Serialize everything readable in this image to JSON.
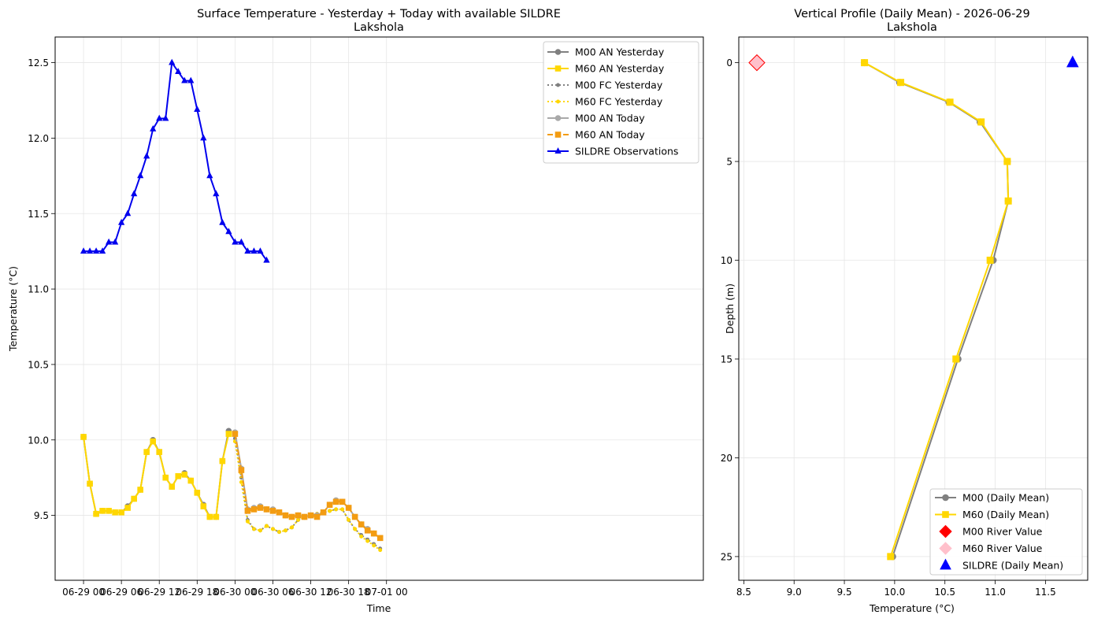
{
  "chart_data": [
    {
      "type": "line",
      "title": "Surface Temperature - Yesterday + Today with available SILDRE",
      "subtitle": "Lakshola",
      "xlabel": "Time",
      "ylabel": "Temperature (°C)",
      "x_unit": "hours since 06-29 00",
      "xlim": [
        -4.5,
        98.2
      ],
      "ylim": [
        9.07,
        12.67
      ],
      "xticks": [
        0,
        6,
        12,
        18,
        24,
        30,
        36,
        42,
        48
      ],
      "xtick_labels": [
        "06-29 00",
        "06-29 06",
        "06-29 12",
        "06-29 18",
        "06-30 00",
        "06-30 06",
        "06-30 12",
        "06-30 18",
        "07-01 00"
      ],
      "yticks": [
        9.5,
        10.0,
        10.5,
        11.0,
        11.5,
        12.0,
        12.5
      ],
      "ytick_labels": [
        "9.5",
        "10.0",
        "10.5",
        "11.0",
        "11.5",
        "12.0",
        "12.5"
      ],
      "grid": true,
      "legend_position": "top-right",
      "series": [
        {
          "name": "M00 AN Yesterday",
          "color": "#808080",
          "style": "solid",
          "marker": "circle",
          "x": [
            0,
            1,
            2,
            3,
            4,
            5,
            6,
            7,
            8,
            9,
            10,
            11,
            12,
            13,
            14,
            15,
            16,
            17,
            18,
            19,
            20,
            21,
            22,
            23
          ],
          "y": [
            10.02,
            9.71,
            9.51,
            9.53,
            9.53,
            9.52,
            9.52,
            9.56,
            9.61,
            9.67,
            9.92,
            10.0,
            9.92,
            9.75,
            9.69,
            9.76,
            9.78,
            9.73,
            9.65,
            9.57,
            9.49,
            9.49,
            9.86,
            10.06
          ]
        },
        {
          "name": "M60 AN Yesterday",
          "color": "#FFD700",
          "style": "solid",
          "marker": "square",
          "x": [
            0,
            1,
            2,
            3,
            4,
            5,
            6,
            7,
            8,
            9,
            10,
            11,
            12,
            13,
            14,
            15,
            16,
            17,
            18,
            19,
            20,
            21,
            22,
            23
          ],
          "y": [
            10.02,
            9.71,
            9.51,
            9.53,
            9.53,
            9.52,
            9.52,
            9.55,
            9.61,
            9.67,
            9.92,
            9.99,
            9.92,
            9.75,
            9.69,
            9.76,
            9.77,
            9.73,
            9.65,
            9.56,
            9.49,
            9.49,
            9.86,
            10.04
          ]
        },
        {
          "name": "M00 FC Yesterday",
          "color": "#808080",
          "style": "dotted",
          "marker": "circle-small",
          "x": [
            24,
            25,
            26,
            27,
            28,
            29,
            30,
            31,
            32,
            33,
            34,
            35,
            36,
            37,
            38,
            39,
            40,
            41,
            42,
            43,
            44,
            45,
            46,
            47
          ],
          "y": [
            10.01,
            9.75,
            9.47,
            9.41,
            9.4,
            9.43,
            9.41,
            9.39,
            9.4,
            9.42,
            9.47,
            9.49,
            9.5,
            9.51,
            9.52,
            9.53,
            9.54,
            9.54,
            9.47,
            9.41,
            9.37,
            9.34,
            9.31,
            9.28
          ]
        },
        {
          "name": "M60 FC Yesterday",
          "color": "#FFD700",
          "style": "dotted",
          "marker": "circle-small",
          "x": [
            24,
            25,
            26,
            27,
            28,
            29,
            30,
            31,
            32,
            33,
            34,
            35,
            36,
            37,
            38,
            39,
            40,
            41,
            42,
            43,
            44,
            45,
            46,
            47
          ],
          "y": [
            9.99,
            9.72,
            9.46,
            9.41,
            9.4,
            9.43,
            9.41,
            9.39,
            9.4,
            9.42,
            9.47,
            9.49,
            9.5,
            9.51,
            9.52,
            9.53,
            9.54,
            9.54,
            9.47,
            9.41,
            9.36,
            9.33,
            9.3,
            9.27
          ]
        },
        {
          "name": "M00 AN Today",
          "color": "#A9A9A9",
          "style": "solid",
          "marker": "circle",
          "x": [
            24,
            25,
            26,
            27,
            28,
            29,
            30,
            31,
            32,
            33,
            34,
            35,
            36,
            37,
            38,
            39,
            40,
            41,
            42,
            43,
            44,
            45,
            46,
            47
          ],
          "y": [
            10.05,
            9.81,
            9.54,
            9.55,
            9.56,
            9.54,
            9.54,
            9.52,
            9.5,
            9.49,
            9.5,
            9.49,
            9.5,
            9.5,
            9.52,
            9.57,
            9.6,
            9.59,
            9.55,
            9.49,
            9.44,
            9.41,
            9.38,
            9.35
          ]
        },
        {
          "name": "M60 AN Today",
          "color": "#F39C12",
          "style": "dashed",
          "marker": "square",
          "x": [
            24,
            25,
            26,
            27,
            28,
            29,
            30,
            31,
            32,
            33,
            34,
            35,
            36,
            37,
            38,
            39,
            40,
            41,
            42,
            43,
            44,
            45,
            46,
            47
          ],
          "y": [
            10.04,
            9.8,
            9.53,
            9.54,
            9.55,
            9.54,
            9.53,
            9.52,
            9.5,
            9.49,
            9.5,
            9.49,
            9.5,
            9.49,
            9.52,
            9.57,
            9.59,
            9.59,
            9.55,
            9.49,
            9.44,
            9.4,
            9.38,
            9.35
          ]
        },
        {
          "name": "SILDRE Observations",
          "color": "#0000EE",
          "style": "solid",
          "marker": "triangle",
          "x": [
            0,
            1,
            2,
            3,
            4,
            5,
            6,
            7,
            8,
            9,
            10,
            11,
            12,
            13,
            14,
            15,
            16,
            17,
            18,
            19,
            20,
            21,
            22,
            23,
            24,
            25,
            26,
            27,
            28,
            29
          ],
          "y": [
            11.25,
            11.25,
            11.25,
            11.25,
            11.31,
            11.31,
            11.44,
            11.5,
            11.63,
            11.75,
            11.88,
            12.06,
            12.13,
            12.13,
            12.5,
            12.44,
            12.38,
            12.38,
            12.19,
            12.0,
            11.75,
            11.63,
            11.44,
            11.38,
            11.31,
            11.31,
            11.25,
            11.25,
            11.25,
            11.19
          ]
        }
      ]
    },
    {
      "type": "line",
      "title": "Vertical Profile (Daily Mean) - 2026-06-29",
      "subtitle": "Lakshola",
      "xlabel": "Temperature (°C)",
      "ylabel": "Depth (m)",
      "xlim": [
        8.45,
        11.92
      ],
      "ylim": [
        26.2,
        -1.3
      ],
      "y_inverted": true,
      "xticks": [
        8.5,
        9.0,
        9.5,
        10.0,
        10.5,
        11.0,
        11.5
      ],
      "xtick_labels": [
        "8.5",
        "9.0",
        "9.5",
        "10.0",
        "10.5",
        "11.0",
        "11.5"
      ],
      "yticks": [
        0,
        5,
        10,
        15,
        20,
        25
      ],
      "ytick_labels": [
        "0",
        "5",
        "10",
        "15",
        "20",
        "25"
      ],
      "grid": true,
      "legend_position": "bottom-right",
      "series": [
        {
          "name": "M00 (Daily Mean)",
          "color": "#808080",
          "style": "solid",
          "marker": "circle",
          "depth": [
            0,
            1,
            2,
            3,
            5,
            7,
            10,
            15,
            25
          ],
          "temp": [
            9.7,
            10.05,
            10.54,
            10.85,
            11.12,
            11.13,
            10.98,
            10.63,
            9.98
          ]
        },
        {
          "name": "M60 (Daily Mean)",
          "color": "#FFD700",
          "style": "solid",
          "marker": "square",
          "depth": [
            0,
            1,
            2,
            3,
            5,
            7,
            10,
            15,
            25
          ],
          "temp": [
            9.7,
            10.06,
            10.55,
            10.86,
            11.12,
            11.13,
            10.95,
            10.61,
            9.96
          ]
        }
      ],
      "points": [
        {
          "name": "M00 River Value",
          "color": "#FF0000",
          "marker": "diamond",
          "temp": 8.63,
          "depth": 0
        },
        {
          "name": "M60 River Value",
          "color": "#FFC0CB",
          "marker": "diamond",
          "temp": 8.63,
          "depth": 0
        },
        {
          "name": "SILDRE (Daily Mean)",
          "color": "#0000FF",
          "marker": "triangle",
          "temp": 11.77,
          "depth": 0
        }
      ]
    }
  ]
}
